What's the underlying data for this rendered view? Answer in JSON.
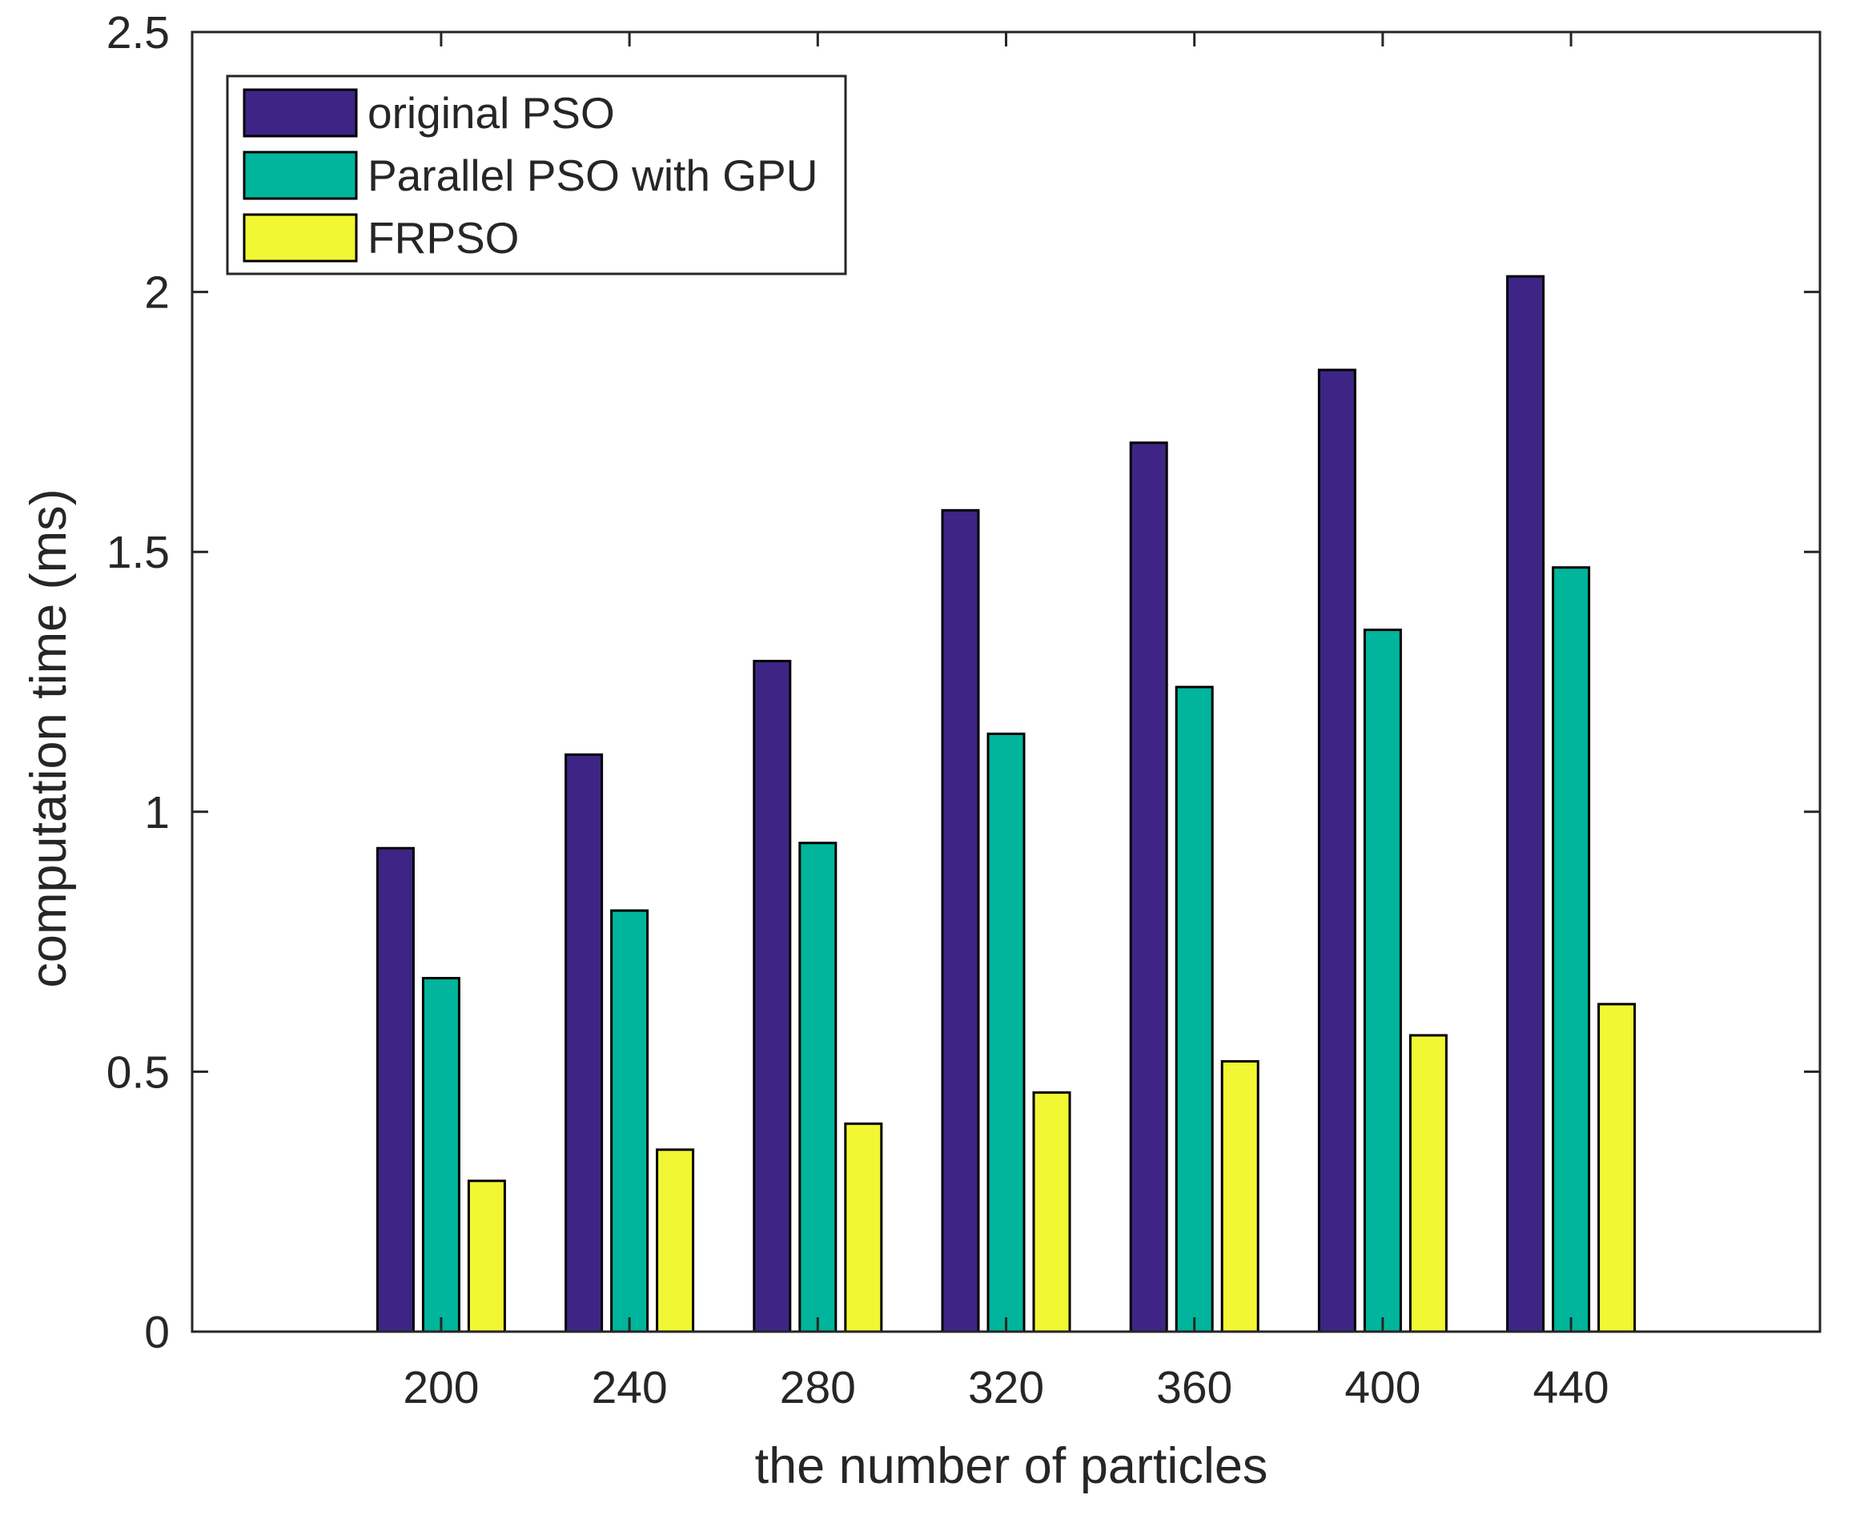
{
  "chart_data": {
    "type": "bar",
    "title": "",
    "xlabel": "the number of particles",
    "ylabel": "computation time (ms)",
    "categories": [
      "200",
      "240",
      "280",
      "320",
      "360",
      "400",
      "440"
    ],
    "series": [
      {
        "name": "original PSO",
        "color": "#3e2585",
        "values": [
          0.93,
          1.11,
          1.29,
          1.58,
          1.71,
          1.85,
          2.03
        ]
      },
      {
        "name": "Parallel PSO with GPU",
        "color": "#00b59b",
        "values": [
          0.68,
          0.81,
          0.94,
          1.15,
          1.24,
          1.35,
          1.47
        ]
      },
      {
        "name": "FRPSO",
        "color": "#f2f733",
        "values": [
          0.29,
          0.35,
          0.4,
          0.46,
          0.52,
          0.57,
          0.63
        ]
      }
    ],
    "ylim": [
      0,
      2.5
    ],
    "yticks": [
      "0",
      "0.5",
      "1",
      "1.5",
      "2",
      "2.5"
    ],
    "grid": false,
    "legend_position": "top-left"
  }
}
